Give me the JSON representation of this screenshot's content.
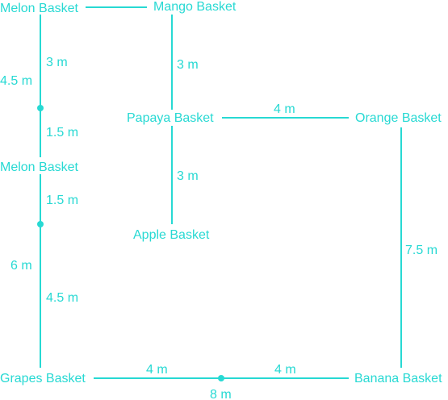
{
  "colors": {
    "accent": "#27d9d3",
    "background": "#ffffff"
  },
  "nodes": {
    "melon_basket_top": "Melon Basket",
    "mango_basket": "Mango Basket",
    "papaya_basket": "Papaya Basket",
    "orange_basket": "Orange Basket",
    "melon_basket_middle": "Melon Basket",
    "apple_basket": "Apple Basket",
    "grapes_basket": "Grapes Basket",
    "banana_basket": "Banana Basket"
  },
  "distances": {
    "melon_top_total": "4.5 m",
    "melon_top_upper": "3 m",
    "melon_top_lower": "1.5 m",
    "mango_to_papaya": "3 m",
    "papaya_to_orange": "4 m",
    "papaya_to_apple": "3 m",
    "melon_middle_upper": "1.5 m",
    "melon_to_grapes_total": "6 m",
    "melon_to_grapes_lower": "4.5 m",
    "orange_to_banana": "7.5 m",
    "grapes_to_mid": "4 m",
    "mid_to_banana": "4 m",
    "grapes_to_banana_total": "8 m"
  }
}
